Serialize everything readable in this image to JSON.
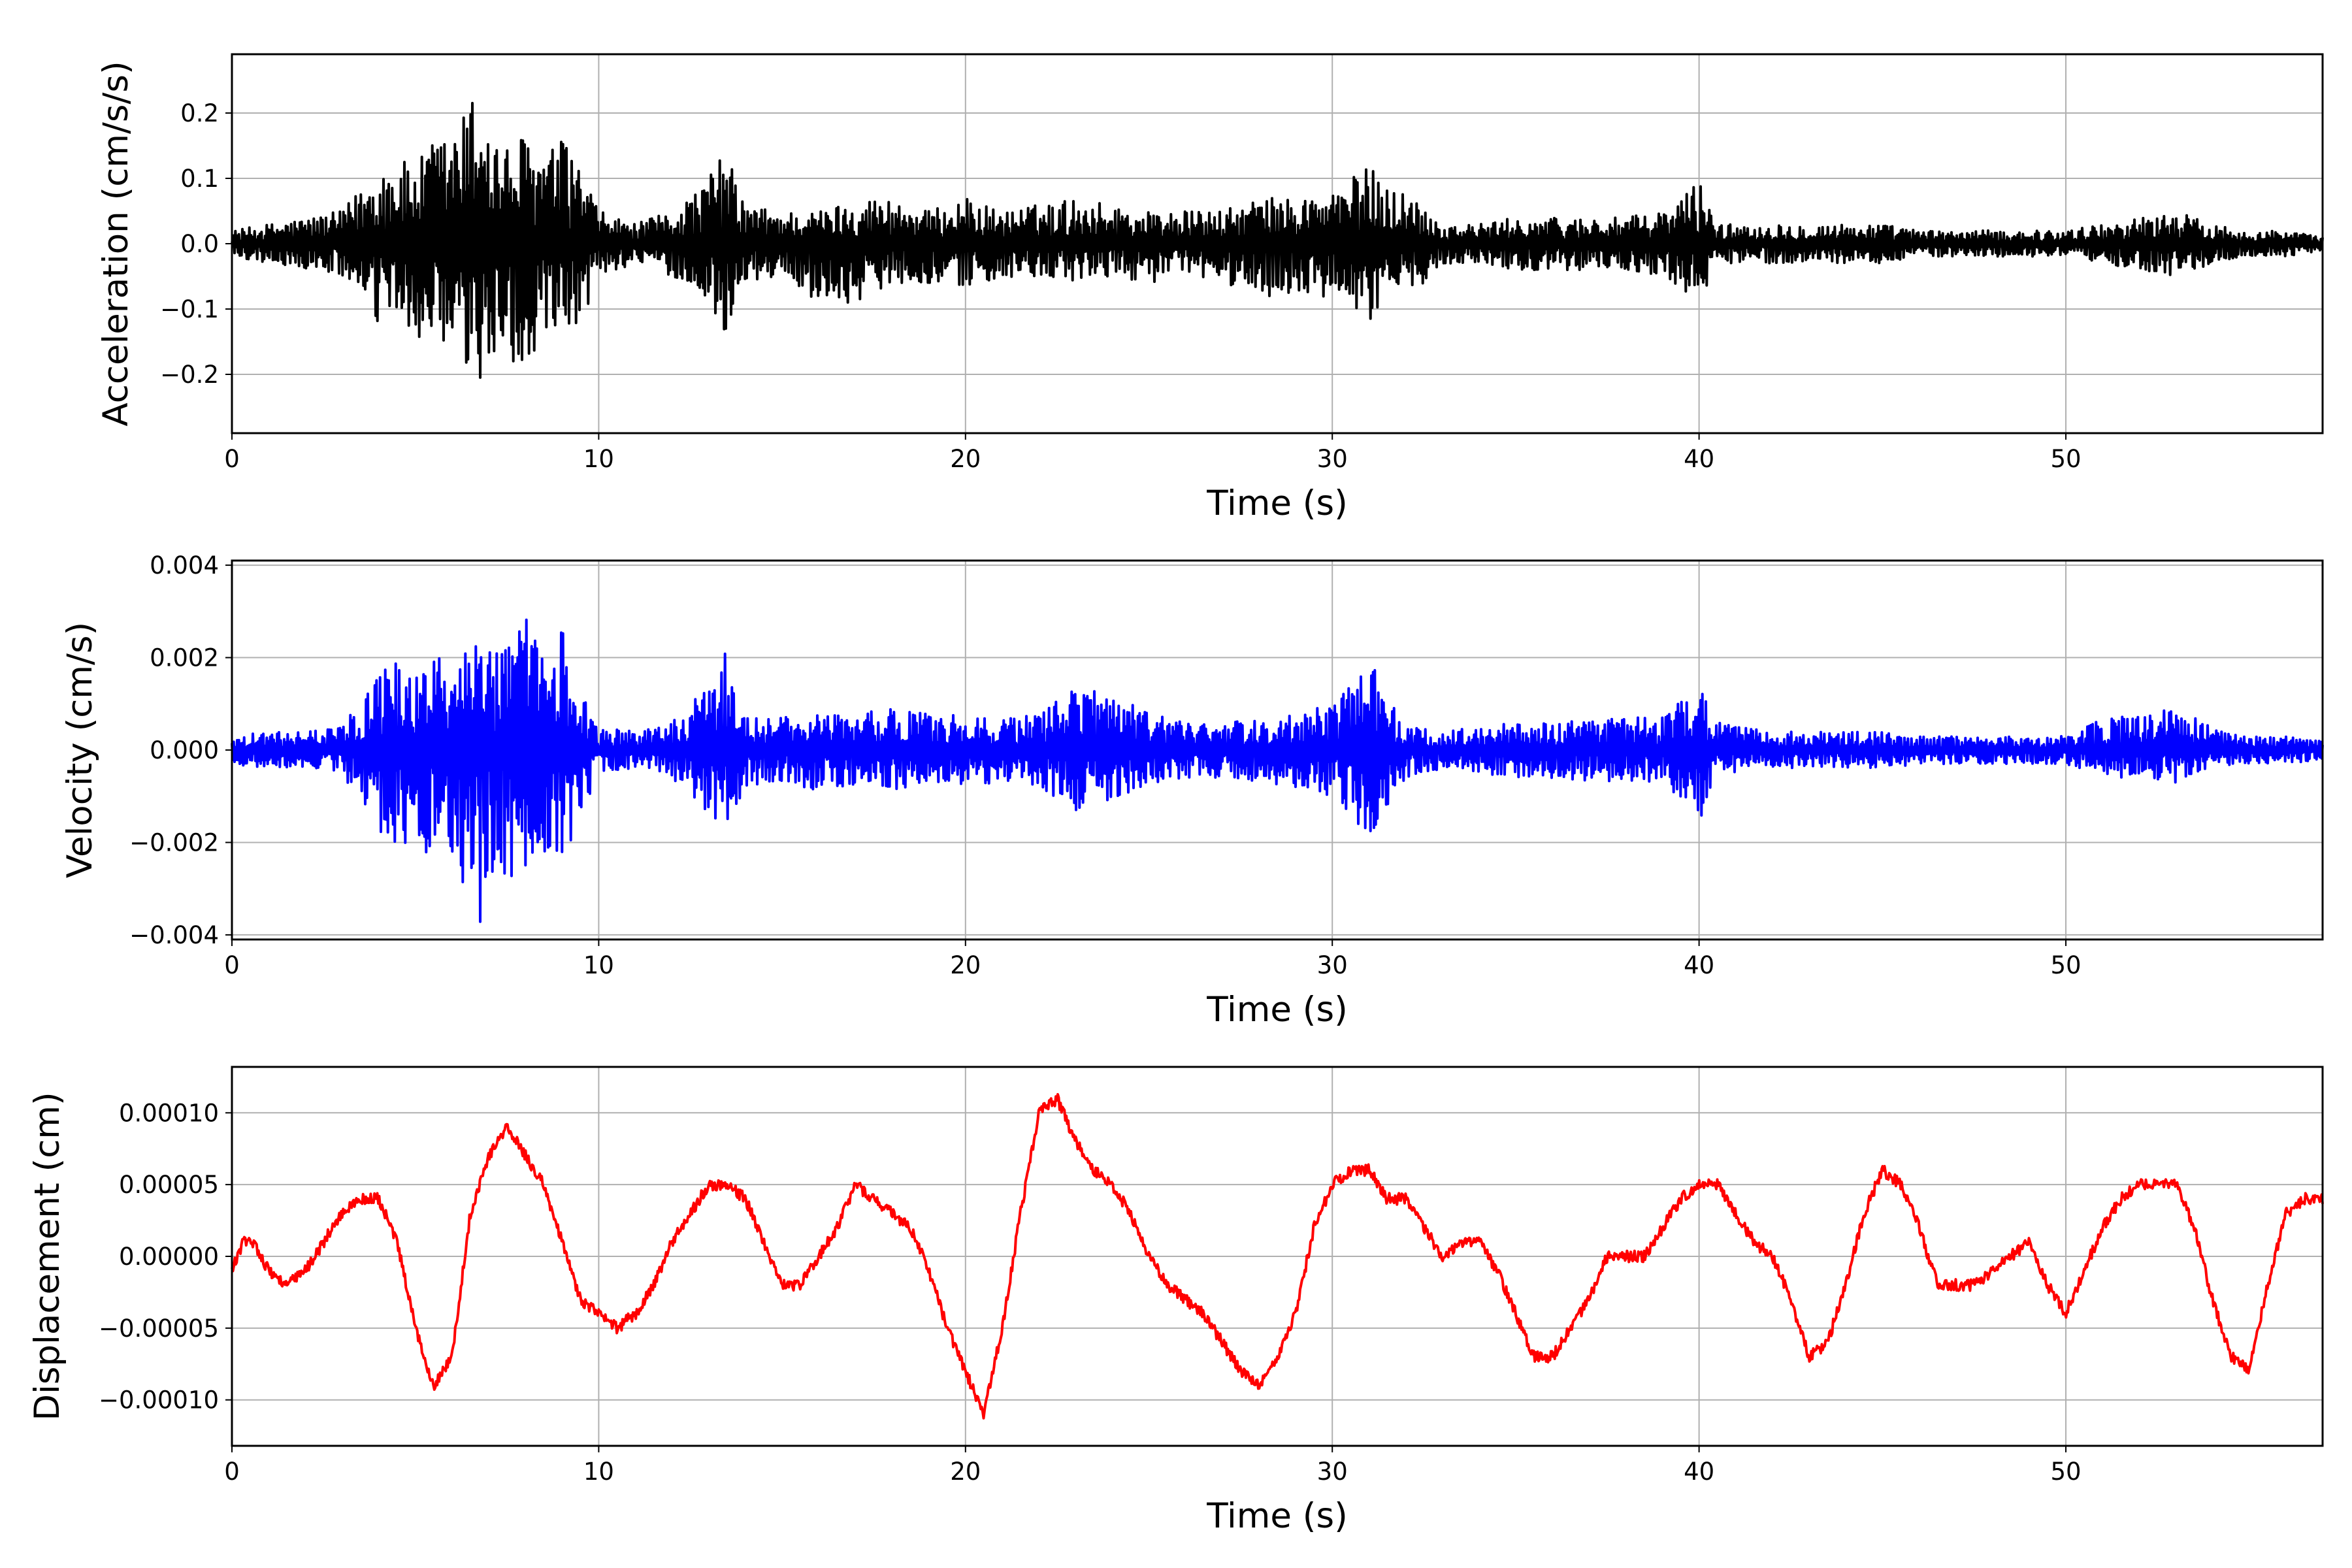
{
  "chart_data": [
    {
      "type": "line",
      "name": "acceleration-panel",
      "xlabel": "Time (s)",
      "ylabel": "Acceleration (cm/s/s)",
      "xlim": [
        0,
        57
      ],
      "ylim": [
        -0.29,
        0.29
      ],
      "xticks": [
        0,
        10,
        20,
        30,
        40,
        50
      ],
      "xtick_labels": [
        "0",
        "10",
        "20",
        "30",
        "40",
        "50"
      ],
      "yticks": [
        -0.2,
        -0.1,
        0.0,
        0.1,
        0.2
      ],
      "ytick_labels": [
        "−0.2",
        "−0.1",
        "0.0",
        "0.1",
        "0.2"
      ],
      "grid": true,
      "color": "#000000",
      "x": [
        0,
        1,
        2,
        3,
        4,
        4.5,
        5,
        5.5,
        6,
        6.5,
        6.8,
        7,
        7.5,
        8,
        8.5,
        9,
        9.5,
        10,
        11,
        12,
        13,
        13.4,
        14,
        15,
        16,
        17,
        18,
        19,
        20,
        21,
        22,
        23,
        24,
        25,
        26,
        27,
        28,
        29,
        30,
        30.5,
        31,
        31.5,
        32,
        32.5,
        33,
        34,
        35,
        36,
        37,
        38,
        39,
        39.5,
        40,
        40.5,
        41,
        42,
        43,
        44,
        45,
        46,
        47,
        48,
        49,
        50,
        51,
        52,
        53,
        54,
        55,
        56,
        57
      ],
      "y_upper": [
        0.02,
        0.03,
        0.04,
        0.05,
        0.12,
        0.13,
        0.12,
        0.16,
        0.17,
        0.22,
        0.27,
        0.18,
        0.15,
        0.17,
        0.14,
        0.16,
        0.12,
        0.05,
        0.03,
        0.05,
        0.1,
        0.15,
        0.06,
        0.05,
        0.05,
        0.07,
        0.07,
        0.05,
        0.07,
        0.05,
        0.06,
        0.07,
        0.06,
        0.05,
        0.05,
        0.05,
        0.07,
        0.07,
        0.08,
        0.1,
        0.12,
        0.09,
        0.08,
        0.06,
        0.03,
        0.03,
        0.04,
        0.04,
        0.04,
        0.04,
        0.05,
        0.07,
        0.1,
        0.03,
        0.03,
        0.03,
        0.03,
        0.03,
        0.03,
        0.02,
        0.02,
        0.02,
        0.02,
        0.02,
        0.03,
        0.04,
        0.05,
        0.03,
        0.02,
        0.02,
        0.01
      ],
      "y_lower": [
        -0.02,
        -0.03,
        -0.04,
        -0.05,
        -0.13,
        -0.12,
        -0.14,
        -0.17,
        -0.2,
        -0.2,
        -0.24,
        -0.19,
        -0.16,
        -0.22,
        -0.15,
        -0.18,
        -0.13,
        -0.05,
        -0.03,
        -0.05,
        -0.09,
        -0.14,
        -0.06,
        -0.05,
        -0.09,
        -0.09,
        -0.06,
        -0.06,
        -0.07,
        -0.05,
        -0.06,
        -0.06,
        -0.05,
        -0.06,
        -0.05,
        -0.06,
        -0.08,
        -0.08,
        -0.09,
        -0.1,
        -0.12,
        -0.09,
        -0.07,
        -0.06,
        -0.03,
        -0.03,
        -0.04,
        -0.04,
        -0.04,
        -0.04,
        -0.05,
        -0.07,
        -0.1,
        -0.03,
        -0.03,
        -0.03,
        -0.03,
        -0.03,
        -0.03,
        -0.02,
        -0.02,
        -0.02,
        -0.02,
        -0.02,
        -0.03,
        -0.04,
        -0.05,
        -0.03,
        -0.02,
        -0.02,
        -0.01
      ]
    },
    {
      "type": "line",
      "name": "velocity-panel",
      "xlabel": "Time (s)",
      "ylabel": "Velocity (cm/s)",
      "xlim": [
        0,
        57
      ],
      "ylim": [
        -0.0041,
        0.0041
      ],
      "xticks": [
        0,
        10,
        20,
        30,
        40,
        50
      ],
      "xtick_labels": [
        "0",
        "10",
        "20",
        "30",
        "40",
        "50"
      ],
      "yticks": [
        -0.004,
        -0.002,
        0.0,
        0.002,
        0.004
      ],
      "ytick_labels": [
        "−0.004",
        "−0.002",
        "0.000",
        "0.002",
        "0.004"
      ],
      "grid": true,
      "color": "#0000ff",
      "x": [
        0,
        1,
        2,
        3,
        4,
        4.5,
        5,
        5.5,
        6,
        6.5,
        6.8,
        7,
        7.5,
        8,
        8.5,
        9,
        9.5,
        10,
        11,
        12,
        13,
        13.4,
        14,
        15,
        16,
        17,
        18,
        19,
        20,
        21,
        22,
        23,
        24,
        25,
        26,
        27,
        28,
        29,
        30,
        30.5,
        31,
        31.5,
        32,
        32.5,
        33,
        34,
        35,
        36,
        37,
        38,
        39,
        39.5,
        40,
        40.5,
        41,
        42,
        43,
        44,
        45,
        46,
        47,
        48,
        49,
        50,
        51,
        52,
        53,
        54,
        55,
        56,
        57
      ],
      "y_upper": [
        0.0003,
        0.0004,
        0.0004,
        0.0005,
        0.0018,
        0.0019,
        0.0017,
        0.0022,
        0.0025,
        0.003,
        0.0035,
        0.0025,
        0.0022,
        0.0029,
        0.0022,
        0.0027,
        0.0015,
        0.0005,
        0.0004,
        0.0006,
        0.0014,
        0.0024,
        0.0008,
        0.0007,
        0.0008,
        0.0008,
        0.0009,
        0.0008,
        0.0008,
        0.0007,
        0.0008,
        0.0014,
        0.0012,
        0.0008,
        0.0006,
        0.0006,
        0.0007,
        0.0008,
        0.001,
        0.0014,
        0.002,
        0.0012,
        0.0006,
        0.0005,
        0.0004,
        0.0005,
        0.0006,
        0.0006,
        0.0007,
        0.0007,
        0.0007,
        0.0011,
        0.0015,
        0.0006,
        0.0005,
        0.0004,
        0.0004,
        0.0004,
        0.0004,
        0.0003,
        0.0003,
        0.0003,
        0.0003,
        0.0003,
        0.0007,
        0.0008,
        0.0009,
        0.0005,
        0.0003,
        0.0003,
        0.0002
      ],
      "y_lower": [
        -0.0003,
        -0.0004,
        -0.0004,
        -0.0005,
        -0.0019,
        -0.002,
        -0.0024,
        -0.0022,
        -0.0026,
        -0.0032,
        -0.0038,
        -0.0026,
        -0.0028,
        -0.0025,
        -0.0022,
        -0.0024,
        -0.0015,
        -0.0005,
        -0.0004,
        -0.0006,
        -0.0014,
        -0.002,
        -0.0008,
        -0.0007,
        -0.0009,
        -0.0008,
        -0.0009,
        -0.0008,
        -0.0008,
        -0.0007,
        -0.0008,
        -0.0013,
        -0.0011,
        -0.0008,
        -0.0006,
        -0.0006,
        -0.0007,
        -0.0008,
        -0.001,
        -0.0014,
        -0.002,
        -0.0012,
        -0.0006,
        -0.0005,
        -0.0004,
        -0.0005,
        -0.0006,
        -0.0006,
        -0.0007,
        -0.0007,
        -0.0007,
        -0.0011,
        -0.0016,
        -0.0006,
        -0.0005,
        -0.0004,
        -0.0004,
        -0.0004,
        -0.0004,
        -0.0003,
        -0.0003,
        -0.0003,
        -0.0003,
        -0.0003,
        -0.0006,
        -0.0006,
        -0.0007,
        -0.0004,
        -0.0003,
        -0.0003,
        -0.0002
      ]
    },
    {
      "type": "line",
      "name": "displacement-panel",
      "xlabel": "Time (s)",
      "ylabel": "Displacement (cm)",
      "xlim": [
        0,
        57
      ],
      "ylim": [
        -0.000132,
        0.000132
      ],
      "xticks": [
        0,
        10,
        20,
        30,
        40,
        50
      ],
      "xtick_labels": [
        "0",
        "10",
        "20",
        "30",
        "40",
        "50"
      ],
      "yticks": [
        -0.0001,
        -5e-05,
        0.0,
        5e-05,
        0.0001
      ],
      "ytick_labels": [
        "−0.00010",
        "−0.00005",
        "0.00000",
        "0.00005",
        "0.00010"
      ],
      "grid": true,
      "color": "#ff0000",
      "x": [
        0,
        0.3,
        0.6,
        1,
        1.5,
        2,
        2.5,
        3,
        3.5,
        4,
        4.5,
        5,
        5.5,
        6,
        6.5,
        7,
        7.5,
        8,
        8.5,
        9,
        9.5,
        10,
        10.5,
        11,
        11.5,
        12,
        12.5,
        13,
        13.5,
        14,
        14.5,
        15,
        15.5,
        16,
        16.5,
        17,
        17.5,
        18,
        18.5,
        19,
        19.5,
        20,
        20.5,
        21,
        21.5,
        22,
        22.5,
        23,
        23.5,
        24,
        24.5,
        25,
        25.5,
        26,
        26.5,
        27,
        27.5,
        28,
        28.5,
        29,
        29.5,
        30,
        30.5,
        31,
        31.5,
        32,
        32.5,
        33,
        33.5,
        34,
        34.5,
        35,
        35.5,
        36,
        36.5,
        37,
        37.5,
        38,
        38.5,
        39,
        39.5,
        40,
        40.5,
        41,
        41.5,
        42,
        42.5,
        43,
        43.5,
        44,
        44.5,
        45,
        45.5,
        46,
        46.5,
        47,
        47.5,
        48,
        48.5,
        49,
        49.5,
        50,
        50.5,
        51,
        51.5,
        52,
        52.5,
        53,
        53.5,
        54,
        54.5,
        55,
        55.5,
        56,
        56.5,
        57
      ],
      "y": [
        -1e-05,
        1e-05,
        1e-05,
        -1e-05,
        -2e-05,
        -1e-05,
        1e-05,
        3e-05,
        4e-05,
        4e-05,
        1e-05,
        -5e-05,
        -9e-05,
        -7e-05,
        3e-05,
        7e-05,
        9e-05,
        7e-05,
        5e-05,
        1e-05,
        -3e-05,
        -4e-05,
        -5e-05,
        -4e-05,
        -2e-05,
        1e-05,
        3e-05,
        5e-05,
        5e-05,
        4e-05,
        1e-05,
        -2e-05,
        -2e-05,
        0,
        2e-05,
        5e-05,
        4e-05,
        3e-05,
        2e-05,
        -1e-05,
        -5e-05,
        -8e-05,
        -0.00011,
        -5e-05,
        3e-05,
        0.0001,
        0.00011,
        8e-05,
        6e-05,
        5e-05,
        3e-05,
        0,
        -2e-05,
        -3e-05,
        -4e-05,
        -6e-05,
        -8e-05,
        -9e-05,
        -7e-05,
        -4e-05,
        2e-05,
        5e-05,
        6e-05,
        6e-05,
        4e-05,
        4e-05,
        2e-05,
        0,
        1e-05,
        1e-05,
        -1e-05,
        -4e-05,
        -7e-05,
        -7e-05,
        -5e-05,
        -3e-05,
        0,
        0,
        0,
        2e-05,
        4e-05,
        5e-05,
        5e-05,
        3e-05,
        1e-05,
        0,
        -3e-05,
        -7e-05,
        -6e-05,
        -2e-05,
        3e-05,
        6e-05,
        5e-05,
        2e-05,
        -2e-05,
        -2e-05,
        -2e-05,
        -1e-05,
        0,
        1e-05,
        -2e-05,
        -4e-05,
        -1e-05,
        2e-05,
        4e-05,
        5e-05,
        5e-05,
        5e-05,
        2e-05,
        -3e-05,
        -7e-05,
        -8e-05,
        -2e-05,
        3e-05,
        4e-05,
        4e-05
      ]
    }
  ]
}
